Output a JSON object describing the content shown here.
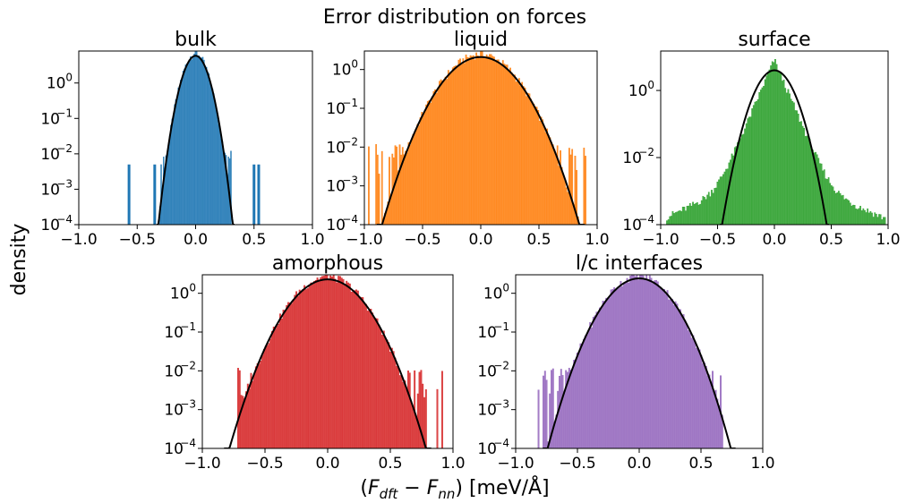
{
  "figure": {
    "title": "Error distribution on forces",
    "ylabel": "density",
    "xlabel_prefix": "(",
    "xlabel_F1": "F",
    "xlabel_sub1": "dft",
    "xlabel_minus": " − ",
    "xlabel_F2": "F",
    "xlabel_sub2": "nn",
    "xlabel_suffix": ") [meV/Å]"
  },
  "chart_data": [
    {
      "type": "bar",
      "title": "bulk",
      "color": "#1f77b4",
      "xlim": [
        -1.0,
        1.0
      ],
      "ylim": [
        0.0001,
        8
      ],
      "yscale": "log",
      "xticks": [
        "−1.0",
        "−0.5",
        "0.0",
        "0.5",
        "1.0"
      ],
      "yticks": [
        {
          "value": 1,
          "exp": "0"
        },
        {
          "value": 0.1,
          "exp": "−1"
        },
        {
          "value": 0.01,
          "exp": "−2"
        },
        {
          "value": 0.001,
          "exp": "−3"
        },
        {
          "value": 0.0001,
          "exp": "−4"
        }
      ],
      "sigma": 0.068,
      "x_range": [
        -0.32,
        0.33
      ],
      "bins": 62,
      "outliers": [
        {
          "x": -0.57,
          "y": 0.005
        },
        {
          "x": 0.5,
          "y": 0.005
        },
        {
          "x": 0.54,
          "y": 0.005
        },
        {
          "x": -0.35,
          "y": 0.005
        }
      ],
      "fit": "gaussian"
    },
    {
      "type": "bar",
      "title": "liquid",
      "color": "#ff7f0e",
      "xlim": [
        -1.0,
        1.0
      ],
      "ylim": [
        0.0001,
        3
      ],
      "yscale": "log",
      "xticks": [
        "−1.0",
        "−0.5",
        "0.0",
        "0.5",
        "1.0"
      ],
      "yticks": [
        {
          "value": 1,
          "exp": "0"
        },
        {
          "value": 0.1,
          "exp": "−1"
        },
        {
          "value": 0.01,
          "exp": "−2"
        },
        {
          "value": 0.001,
          "exp": "−3"
        },
        {
          "value": 0.0001,
          "exp": "−4"
        }
      ],
      "sigma": 0.19,
      "x_range": [
        -0.98,
        0.92
      ],
      "bins": 150,
      "fit": "gaussian"
    },
    {
      "type": "bar",
      "title": "surface",
      "color": "#2ca02c",
      "xlim": [
        -1.0,
        1.0
      ],
      "ylim": [
        0.0001,
        15
      ],
      "yscale": "log",
      "xticks": [
        "−1.0",
        "−0.5",
        "0.0",
        "0.5",
        "1.0"
      ],
      "yticks": [
        {
          "value": 1,
          "exp": "0"
        },
        {
          "value": 0.01,
          "exp": "−2"
        },
        {
          "value": 0.0001,
          "exp": "−4"
        }
      ],
      "sigma": 0.1,
      "laplace_b": 0.055,
      "peak": 9,
      "x_range": [
        -0.95,
        0.98
      ],
      "bins": 152,
      "fit": "gaussian"
    },
    {
      "type": "bar",
      "title": "amorphous",
      "color": "#d62728",
      "xlim": [
        -1.0,
        1.0
      ],
      "ylim": [
        0.0001,
        3
      ],
      "yscale": "log",
      "xticks": [
        "−1.0",
        "−0.5",
        "0.0",
        "0.5",
        "1.0"
      ],
      "yticks": [
        {
          "value": 1,
          "exp": "0"
        },
        {
          "value": 0.1,
          "exp": "−1"
        },
        {
          "value": 0.01,
          "exp": "−2"
        },
        {
          "value": 0.001,
          "exp": "−3"
        },
        {
          "value": 0.0001,
          "exp": "−4"
        }
      ],
      "sigma": 0.175,
      "x_range": [
        -0.72,
        0.96
      ],
      "bins": 130,
      "fit": "gaussian"
    },
    {
      "type": "bar",
      "title": "l/c interfaces",
      "color": "#9467bd",
      "xlim": [
        -1.0,
        1.0
      ],
      "ylim": [
        0.0001,
        3
      ],
      "yscale": "log",
      "xticks": [
        "−1.0",
        "−0.5",
        "0.0",
        "0.5",
        "1.0"
      ],
      "yticks": [
        {
          "value": 1,
          "exp": "0"
        },
        {
          "value": 0.1,
          "exp": "−1"
        },
        {
          "value": 0.01,
          "exp": "−2"
        },
        {
          "value": 0.001,
          "exp": "−3"
        },
        {
          "value": 0.0001,
          "exp": "−4"
        }
      ],
      "sigma": 0.165,
      "x_range": [
        -0.82,
        0.68
      ],
      "bins": 115,
      "fit": "gaussian"
    }
  ]
}
